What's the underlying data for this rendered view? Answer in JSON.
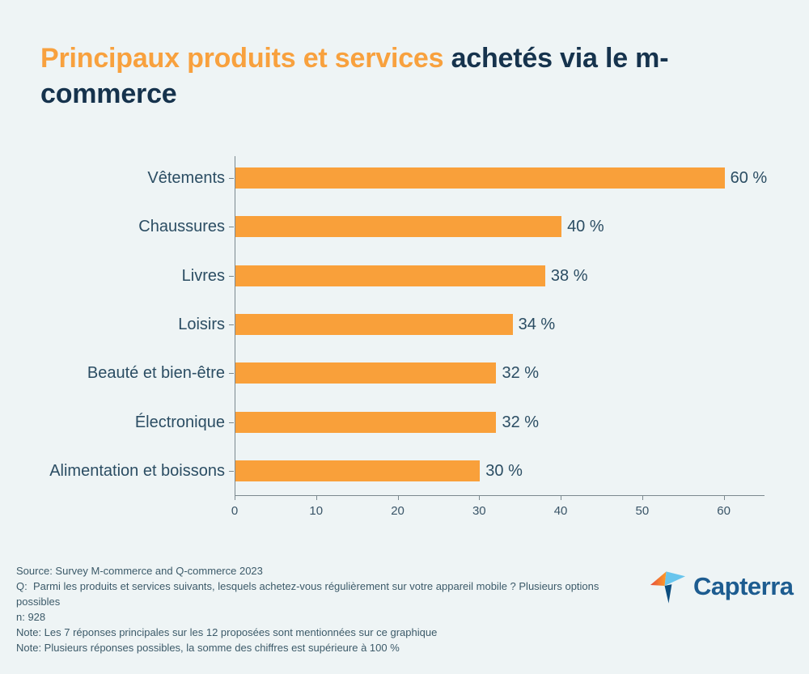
{
  "title": {
    "highlight": "Principaux produits et services",
    "rest": " achetés via le m-commerce"
  },
  "chart_data": {
    "type": "bar",
    "orientation": "horizontal",
    "title": "Principaux produits et services achetés via le m-commerce",
    "categories": [
      "Vêtements",
      "Chaussures",
      "Livres",
      "Loisirs",
      "Beauté et bien-être",
      "Électronique",
      "Alimentation et boissons"
    ],
    "values": [
      60,
      40,
      38,
      34,
      32,
      32,
      30
    ],
    "value_labels": [
      "60 %",
      "40 %",
      "38 %",
      "34 %",
      "32 %",
      "32 %",
      "30 %"
    ],
    "x_ticks": [
      0,
      10,
      20,
      30,
      40,
      50,
      60
    ],
    "xlim": [
      0,
      65
    ],
    "grid": false,
    "legend": "none",
    "bar_color": "#F9A03A"
  },
  "footer": {
    "lines": [
      "Source: Survey M-commerce and Q-commerce 2023",
      "Q:  Parmi les produits et services suivants, lesquels achetez-vous régulièrement sur votre appareil mobile ? Plusieurs options possibles",
      "n: 928",
      "Note: Les 7 réponses principales sur les 12 proposées sont mentionnées sur ce graphique",
      "Note: Plusieurs réponses possibles, la somme des chiffres est supérieure à 100 %"
    ]
  },
  "logo": {
    "text": "Capterra",
    "colors": {
      "wordmark_navy": "#1D5C90",
      "mark_light_blue": "#68C5ED",
      "mark_orange": "#FF9D28",
      "mark_red": "#E54C3C",
      "mark_dark_navy": "#0B4D7F"
    }
  },
  "colors": {
    "background": "#EEF4F5",
    "title_highlight": "#F8A13E",
    "title_dark": "#16334D",
    "label_text": "#2B4D63",
    "axis": "#7B898F",
    "tick_label": "#3A5568",
    "footer_text": "#3C5A69"
  }
}
